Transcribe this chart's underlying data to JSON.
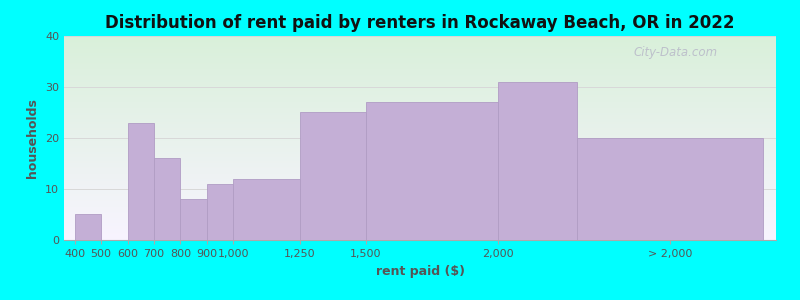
{
  "title": "Distribution of rent paid by renters in Rockaway Beach, OR in 2022",
  "xlabel": "rent paid ($)",
  "ylabel": "households",
  "background_color": "#00FFFF",
  "grad_top_color": "#d9f0da",
  "grad_bottom_color": "#f8f4ff",
  "bar_color": "#c4afd6",
  "bar_edge_color": "#b09cc4",
  "ylim": [
    0,
    40
  ],
  "yticks": [
    0,
    10,
    20,
    30,
    40
  ],
  "grid_color": "#d8d8d8",
  "categories": [
    "400",
    "500",
    "600",
    "700",
    "800",
    "900",
    "1,000",
    "1,250",
    "1,500",
    "2,000",
    "> 2,000"
  ],
  "values": [
    5,
    0,
    23,
    16,
    8,
    11,
    12,
    25,
    27,
    31,
    20
  ],
  "x_lefts": [
    400,
    500,
    600,
    700,
    800,
    900,
    1000,
    1250,
    1500,
    2000,
    2300
  ],
  "x_widths": [
    100,
    100,
    100,
    100,
    100,
    100,
    250,
    250,
    500,
    300,
    700
  ],
  "tick_positions": [
    400,
    500,
    600,
    700,
    800,
    900,
    1000,
    1250,
    1500,
    2000,
    2650
  ],
  "xlim_left": 360,
  "xlim_right": 3050,
  "title_fontsize": 12,
  "axis_label_fontsize": 9,
  "tick_fontsize": 8,
  "watermark_text": "City-Data.com",
  "watermark_color": "#b8b8c8"
}
